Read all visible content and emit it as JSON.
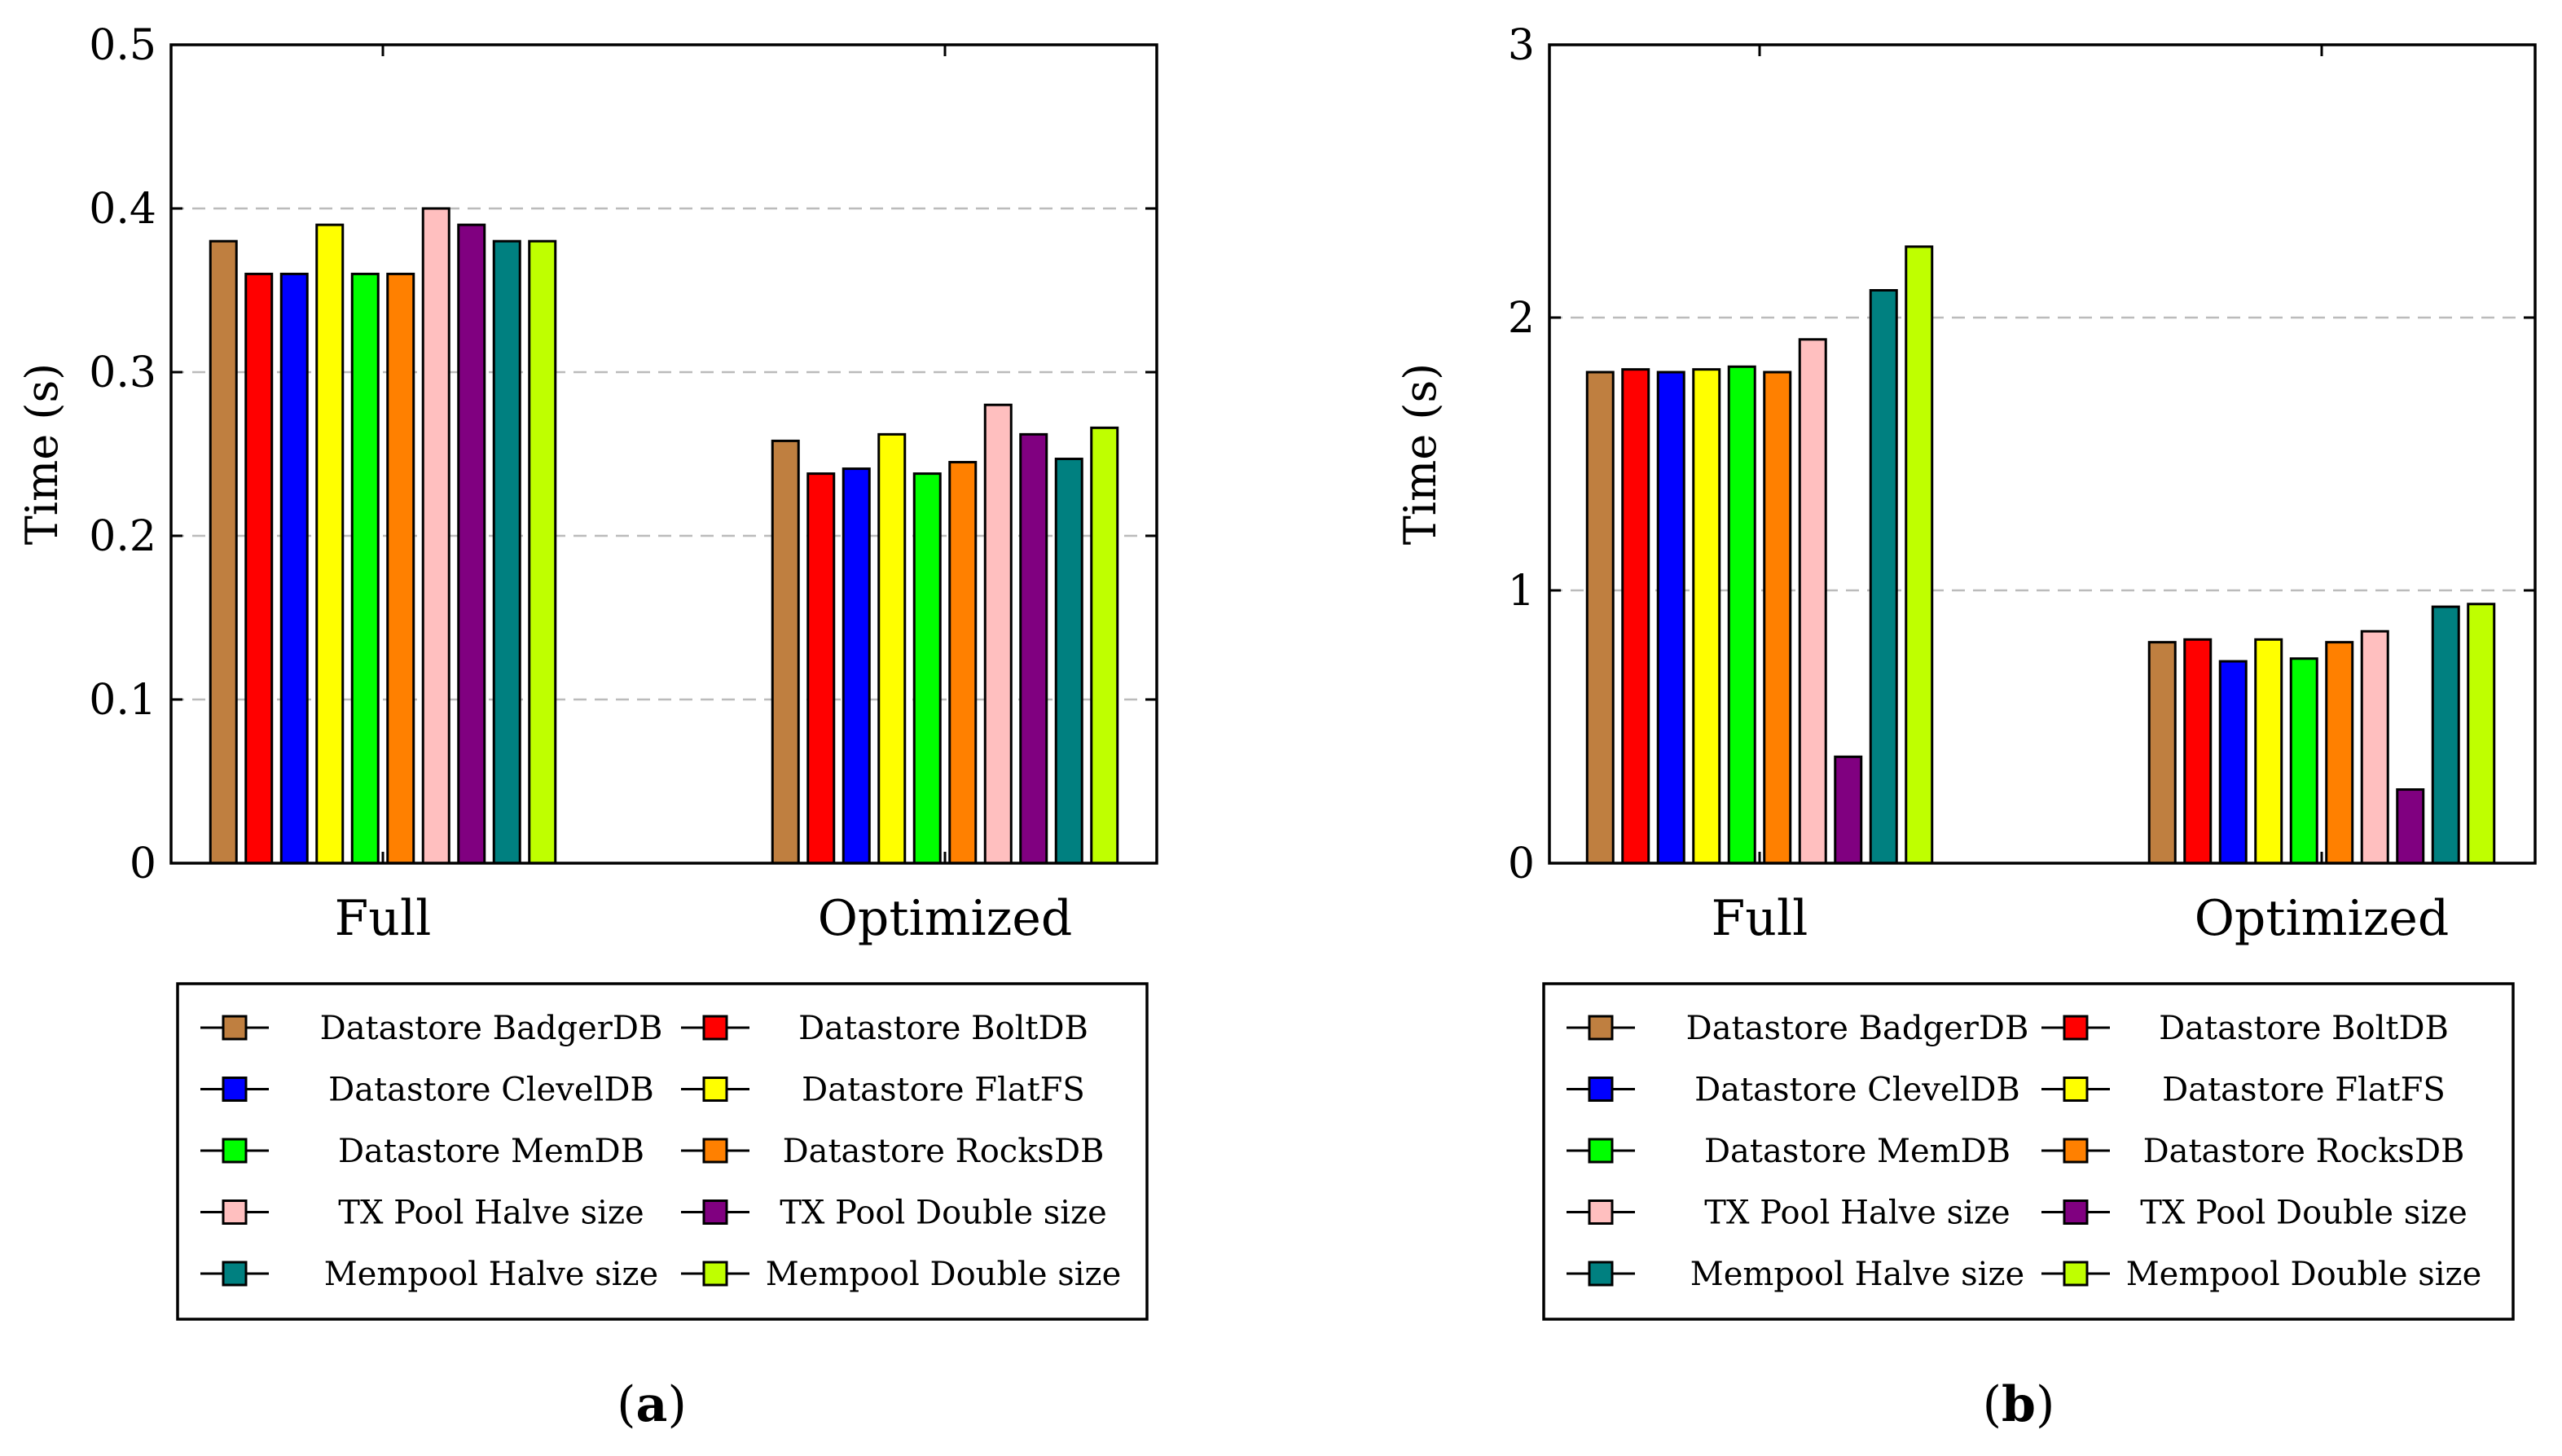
{
  "series_names": [
    "Datastore BadgerDB",
    "Datastore BoltDB",
    "Datastore ClevelDB",
    "Datastore FlatFS",
    "Datastore MemDB",
    "Datastore RocksDB",
    "TX Pool Halve size",
    "TX Pool Double size",
    "Mempool Halve size",
    "Mempool Double size"
  ],
  "series_colors": [
    "#bf7f40",
    "#ff0000",
    "#0000ff",
    "#ffff00",
    "#00ff00",
    "#ff8000",
    "#ffbfbf",
    "#800080",
    "#008080",
    "#bfff00"
  ],
  "chart_data": [
    {
      "type": "bar",
      "panel_label": "a",
      "title": "",
      "xlabel": "",
      "ylabel": "Time (s)",
      "ylim": [
        0,
        0.5
      ],
      "yticks": [
        0,
        0.1,
        0.2,
        0.3,
        0.4,
        0.5
      ],
      "ytick_labels": [
        "0",
        "0.1",
        "0.2",
        "0.3",
        "0.4",
        "0.5"
      ],
      "grid": "horizontal dashed",
      "legend_position": "below",
      "categories": [
        "Full",
        "Optimized"
      ],
      "series": [
        {
          "name": "Datastore BadgerDB",
          "values": [
            0.38,
            0.258
          ]
        },
        {
          "name": "Datastore BoltDB",
          "values": [
            0.36,
            0.238
          ]
        },
        {
          "name": "Datastore ClevelDB",
          "values": [
            0.36,
            0.241
          ]
        },
        {
          "name": "Datastore FlatFS",
          "values": [
            0.39,
            0.262
          ]
        },
        {
          "name": "Datastore MemDB",
          "values": [
            0.36,
            0.238
          ]
        },
        {
          "name": "Datastore RocksDB",
          "values": [
            0.36,
            0.245
          ]
        },
        {
          "name": "TX Pool Halve size",
          "values": [
            0.4,
            0.28
          ]
        },
        {
          "name": "TX Pool Double size",
          "values": [
            0.39,
            0.262
          ]
        },
        {
          "name": "Mempool Halve size",
          "values": [
            0.38,
            0.247
          ]
        },
        {
          "name": "Mempool Double size",
          "values": [
            0.38,
            0.266
          ]
        }
      ]
    },
    {
      "type": "bar",
      "panel_label": "b",
      "title": "",
      "xlabel": "",
      "ylabel": "Time (s)",
      "ylim": [
        0,
        3
      ],
      "yticks": [
        0,
        1,
        2,
        3
      ],
      "ytick_labels": [
        "0",
        "1",
        "2",
        "3"
      ],
      "grid": "horizontal dashed",
      "legend_position": "below",
      "categories": [
        "Full",
        "Optimized"
      ],
      "series": [
        {
          "name": "Datastore BadgerDB",
          "values": [
            1.8,
            0.81
          ]
        },
        {
          "name": "Datastore BoltDB",
          "values": [
            1.81,
            0.82
          ]
        },
        {
          "name": "Datastore ClevelDB",
          "values": [
            1.8,
            0.74
          ]
        },
        {
          "name": "Datastore FlatFS",
          "values": [
            1.81,
            0.82
          ]
        },
        {
          "name": "Datastore MemDB",
          "values": [
            1.82,
            0.75
          ]
        },
        {
          "name": "Datastore RocksDB",
          "values": [
            1.8,
            0.81
          ]
        },
        {
          "name": "TX Pool Halve size",
          "values": [
            1.92,
            0.85
          ]
        },
        {
          "name": "TX Pool Double size",
          "values": [
            0.39,
            0.27
          ]
        },
        {
          "name": "Mempool Halve size",
          "values": [
            2.1,
            0.94
          ]
        },
        {
          "name": "Mempool Double size",
          "values": [
            2.26,
            0.95
          ]
        }
      ]
    }
  ]
}
